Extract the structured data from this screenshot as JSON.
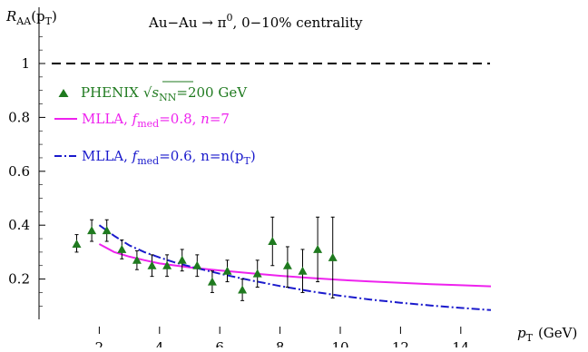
{
  "chart_data": {
    "type": "scatter",
    "title": "Au−Au → π⁰,  0−10% centrality",
    "ylabel": "R_AA(p_T)",
    "xlabel": "p_T  (GeV)",
    "xlim": [
      0,
      15.2
    ],
    "ylim": [
      0,
      1.15
    ],
    "x_ticks": [
      2,
      4,
      6,
      8,
      10,
      12,
      14
    ],
    "y_ticks": [
      0.2,
      0.4,
      0.6,
      0.8,
      1
    ],
    "grid": false,
    "legend_position": "top-left",
    "reference_line": {
      "y": 1,
      "style": "dashed",
      "color": "#000000"
    },
    "series": [
      {
        "name": "PHENIX √s_NN = 200 GeV",
        "kind": "points",
        "marker": "triangle",
        "color": "#1f7a1f",
        "x": [
          1.25,
          1.75,
          2.25,
          2.75,
          3.25,
          3.75,
          4.25,
          4.75,
          5.25,
          5.75,
          6.25,
          6.75,
          7.25,
          7.75,
          8.25,
          8.75,
          9.25,
          9.75
        ],
        "y": [
          0.33,
          0.38,
          0.38,
          0.31,
          0.27,
          0.25,
          0.25,
          0.27,
          0.25,
          0.19,
          0.23,
          0.16,
          0.22,
          0.34,
          0.25,
          0.23,
          0.31,
          0.28
        ],
        "err_low": [
          0.03,
          0.04,
          0.04,
          0.035,
          0.035,
          0.04,
          0.04,
          0.04,
          0.04,
          0.04,
          0.04,
          0.04,
          0.05,
          0.09,
          0.08,
          0.08,
          0.12,
          0.15
        ],
        "err_high": [
          0.035,
          0.04,
          0.04,
          0.035,
          0.035,
          0.04,
          0.04,
          0.04,
          0.04,
          0.04,
          0.04,
          0.04,
          0.05,
          0.09,
          0.07,
          0.08,
          0.12,
          0.15
        ]
      },
      {
        "name": "MLLA, f_med=0.8, n=7",
        "kind": "line",
        "style": "solid",
        "color": "#ee22ee",
        "x": [
          2,
          2.5,
          3,
          3.5,
          4,
          5,
          6,
          7,
          8,
          9,
          10,
          11,
          12,
          13,
          14,
          15
        ],
        "y": [
          0.33,
          0.3,
          0.283,
          0.27,
          0.258,
          0.243,
          0.232,
          0.222,
          0.212,
          0.204,
          0.197,
          0.191,
          0.186,
          0.181,
          0.177,
          0.173
        ]
      },
      {
        "name": "MLLA, f_med=0.6, n=n(p_T)",
        "kind": "line",
        "style": "dash-dot",
        "color": "#1a1acc",
        "x": [
          2,
          2.5,
          3,
          3.5,
          4,
          4.5,
          5,
          6,
          7,
          8,
          9,
          10,
          11,
          12,
          13,
          14,
          15
        ],
        "y": [
          0.4,
          0.36,
          0.325,
          0.3,
          0.28,
          0.262,
          0.247,
          0.22,
          0.196,
          0.174,
          0.155,
          0.138,
          0.124,
          0.112,
          0.102,
          0.093,
          0.085
        ]
      }
    ]
  },
  "legend": {
    "phenix": {
      "name": "PHENIX",
      "sqrt": "√",
      "s": "s",
      "s_sub": "NN",
      "value": "=200 GeV"
    },
    "mlla_a": {
      "prefix": "MLLA, ",
      "f": "f",
      "f_sub": "med",
      "value": "=0.8, ",
      "n": "n",
      "n_value": "=7"
    },
    "mlla_b": {
      "prefix": "MLLA, ",
      "f": "f",
      "f_sub": "med",
      "value": "=0.6, n=n(p",
      "T": "T",
      "suffix": ")"
    }
  },
  "axis_text": {
    "y_title_main": "R",
    "y_title_sub": "AA",
    "y_title_arg": "(p",
    "y_title_arg_sub": "T",
    "y_title_close": ")",
    "x_title_main": "p",
    "x_title_sub": "T",
    "x_title_unit": "(GeV)",
    "title_left": "Au−Au → π",
    "title_sup": "0",
    "title_right": ",  0−10% centrality"
  }
}
